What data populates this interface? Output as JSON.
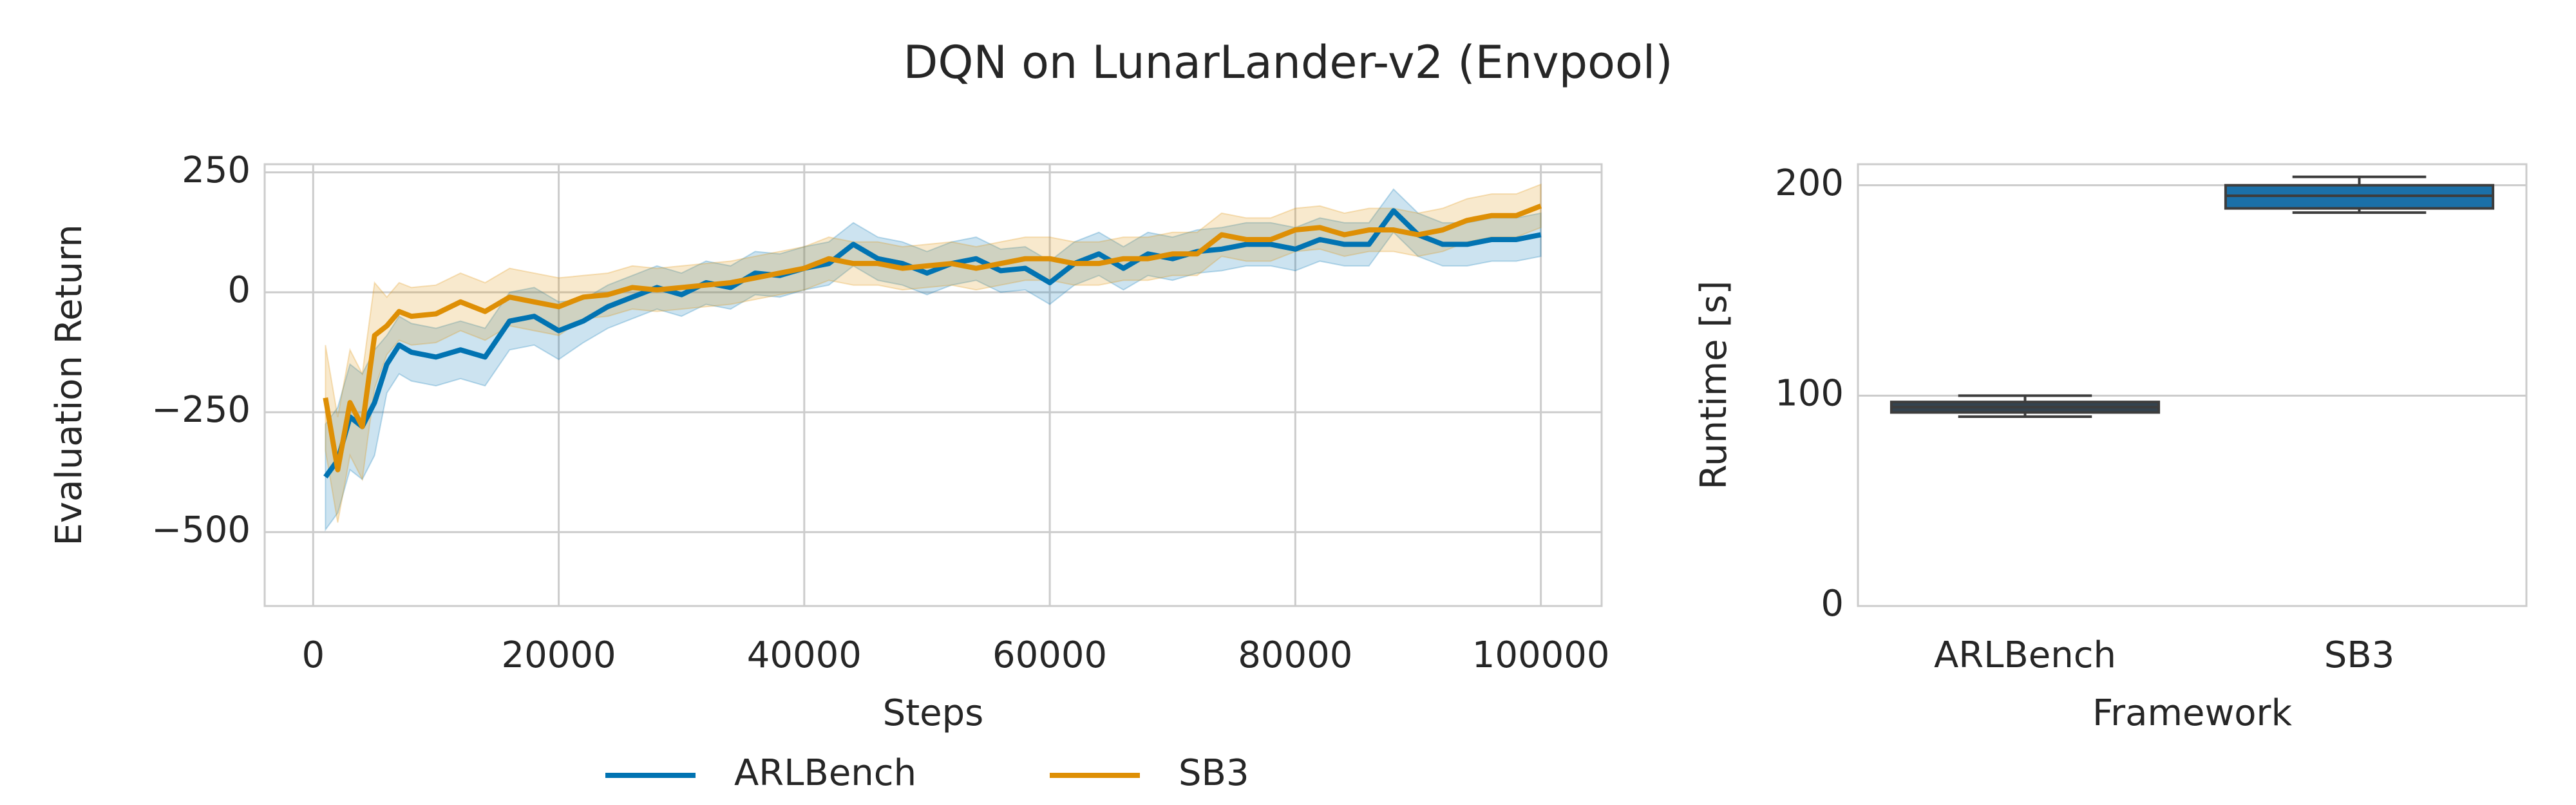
{
  "title": "DQN on LunarLander-v2 (Envpool)",
  "chart_data": [
    {
      "type": "line",
      "xlabel": "Steps",
      "ylabel": "Evaluation Return",
      "x": [
        1000,
        2000,
        3000,
        4000,
        5000,
        6000,
        7000,
        8000,
        10000,
        12000,
        14000,
        16000,
        18000,
        20000,
        22000,
        24000,
        26000,
        28000,
        30000,
        32000,
        34000,
        36000,
        38000,
        40000,
        42000,
        44000,
        46000,
        48000,
        50000,
        52000,
        54000,
        56000,
        58000,
        60000,
        62000,
        64000,
        66000,
        68000,
        70000,
        72000,
        74000,
        76000,
        78000,
        80000,
        82000,
        84000,
        86000,
        88000,
        90000,
        92000,
        94000,
        96000,
        98000,
        100000
      ],
      "xlim": [
        -3950,
        104950
      ],
      "xticks": [
        0,
        20000,
        40000,
        60000,
        80000,
        100000
      ],
      "ylim": [
        -654,
        267
      ],
      "yticks": [
        {
          "value": -500,
          "label": "−500"
        },
        {
          "value": -250,
          "label": "−250"
        },
        0,
        250
      ],
      "grid": true,
      "legend": "lower center",
      "series": [
        {
          "name": "ARLBench",
          "color": "#0173b2",
          "values": [
            -385,
            -350,
            -260,
            -280,
            -230,
            -150,
            -110,
            -125,
            -135,
            -120,
            -135,
            -60,
            -50,
            -80,
            -60,
            -30,
            -10,
            10,
            -5,
            20,
            10,
            40,
            35,
            50,
            60,
            100,
            70,
            60,
            40,
            60,
            70,
            45,
            50,
            20,
            60,
            80,
            50,
            80,
            70,
            85,
            90,
            100,
            100,
            90,
            110,
            100,
            100,
            170,
            120,
            100,
            100,
            110,
            110,
            120
          ],
          "lower": [
            -495,
            -460,
            -370,
            -390,
            -340,
            -210,
            -170,
            -185,
            -195,
            -180,
            -195,
            -120,
            -110,
            -140,
            -105,
            -75,
            -55,
            -35,
            -50,
            -25,
            -35,
            -5,
            -10,
            5,
            15,
            55,
            25,
            15,
            -5,
            15,
            25,
            0,
            5,
            -25,
            15,
            35,
            5,
            35,
            25,
            40,
            45,
            55,
            55,
            45,
            65,
            55,
            55,
            125,
            75,
            55,
            55,
            65,
            65,
            75
          ],
          "upper": [
            -275,
            -240,
            -150,
            -170,
            -120,
            -90,
            -50,
            -65,
            -75,
            -60,
            -75,
            0,
            10,
            -20,
            -15,
            15,
            35,
            55,
            40,
            65,
            55,
            85,
            80,
            95,
            105,
            145,
            115,
            105,
            85,
            105,
            115,
            90,
            95,
            65,
            105,
            125,
            95,
            125,
            115,
            130,
            135,
            145,
            145,
            135,
            155,
            145,
            145,
            215,
            165,
            145,
            145,
            155,
            155,
            165
          ]
        },
        {
          "name": "SB3",
          "color": "#de8f05",
          "values": [
            -220,
            -370,
            -230,
            -280,
            -90,
            -70,
            -40,
            -50,
            -45,
            -20,
            -40,
            -10,
            -20,
            -30,
            -10,
            -5,
            10,
            5,
            10,
            15,
            20,
            30,
            40,
            50,
            70,
            60,
            60,
            50,
            55,
            60,
            50,
            60,
            70,
            70,
            60,
            60,
            70,
            70,
            80,
            80,
            120,
            110,
            110,
            130,
            135,
            120,
            130,
            130,
            120,
            130,
            150,
            160,
            160,
            180
          ],
          "lower": [
            -330,
            -480,
            -340,
            -390,
            -200,
            -130,
            -100,
            -110,
            -105,
            -80,
            -100,
            -70,
            -80,
            -90,
            -55,
            -50,
            -35,
            -40,
            -35,
            -30,
            -25,
            -15,
            -5,
            5,
            25,
            15,
            15,
            5,
            10,
            15,
            5,
            15,
            25,
            25,
            15,
            15,
            25,
            25,
            35,
            35,
            75,
            65,
            65,
            85,
            90,
            75,
            85,
            85,
            75,
            85,
            105,
            115,
            115,
            135
          ],
          "upper": [
            -110,
            -260,
            -120,
            -170,
            20,
            -10,
            20,
            10,
            15,
            40,
            20,
            50,
            40,
            30,
            35,
            40,
            55,
            50,
            55,
            60,
            65,
            75,
            85,
            95,
            115,
            105,
            105,
            95,
            100,
            105,
            95,
            105,
            115,
            115,
            105,
            105,
            115,
            115,
            125,
            125,
            165,
            155,
            155,
            175,
            180,
            165,
            175,
            175,
            165,
            175,
            195,
            205,
            205,
            225
          ]
        }
      ]
    },
    {
      "type": "box",
      "xlabel": "Framework",
      "ylabel": "Runtime [s]",
      "categories": [
        "ARLBench",
        "SB3"
      ],
      "colors": [
        "#34434f",
        "#1b70a8"
      ],
      "boxes": [
        {
          "whislo": 90,
          "q1": 92,
          "med": 94.5,
          "q3": 97,
          "whishi": 100
        },
        {
          "whislo": 187,
          "q1": 189,
          "med": 195,
          "q3": 200,
          "whishi": 204
        }
      ],
      "ylim": [
        0,
        210
      ],
      "yticks": [
        0,
        100,
        200
      ],
      "grid": true
    }
  ]
}
